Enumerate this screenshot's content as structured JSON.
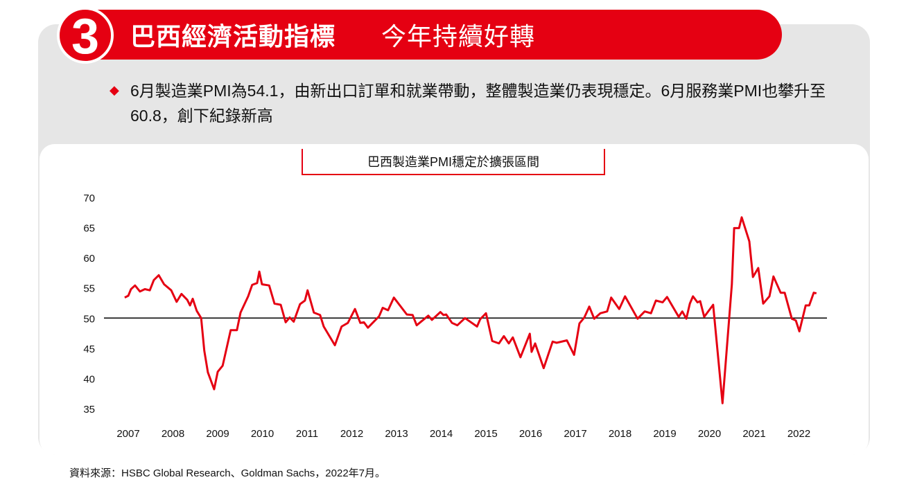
{
  "header": {
    "number": "3",
    "title_bold": "巴西經濟活動指標",
    "title_light": "今年持續好轉"
  },
  "description": "6月製造業PMI為54.1，由新出口訂單和就業帶動，整體製造業仍表現穩定。6月服務業PMI也攀升至60.8，創下紀錄新高",
  "source": "資料來源：HSBC Global Research、Goldman Sachs，2022年7月。",
  "colors": {
    "accent": "#e50012",
    "panel": "#e6e6e6",
    "line": "#e50012",
    "reference": "#000000"
  },
  "chart_data": {
    "type": "line",
    "title": "巴西製造業PMI穩定於擴張區間",
    "xlabel": "",
    "ylabel": "",
    "ylim": [
      35,
      70
    ],
    "xlim": [
      2007,
      2022.5
    ],
    "yticks": [
      "70",
      "65",
      "60",
      "55",
      "50",
      "45",
      "40",
      "35"
    ],
    "xticks": [
      "2007",
      "2008",
      "2009",
      "2010",
      "2011",
      "2012",
      "2013",
      "2014",
      "2015",
      "2016",
      "2017",
      "2018",
      "2019",
      "2020",
      "2021",
      "2022"
    ],
    "reference_line": 50,
    "grid": false,
    "x": [
      2007.03,
      2007.11,
      2007.17,
      2007.26,
      2007.37,
      2007.48,
      2007.59,
      2007.68,
      2007.79,
      2007.91,
      2008.07,
      2008.19,
      2008.3,
      2008.43,
      2008.49,
      2008.55,
      2008.64,
      2008.74,
      2008.81,
      2008.89,
      2009.03,
      2009.11,
      2009.22,
      2009.4,
      2009.54,
      2009.62,
      2009.79,
      2009.88,
      2009.99,
      2010.04,
      2010.1,
      2010.26,
      2010.38,
      2010.52,
      2010.63,
      2010.72,
      2010.81,
      2010.95,
      2011.06,
      2011.12,
      2011.26,
      2011.4,
      2011.48,
      2011.73,
      2011.88,
      2012.02,
      2012.18,
      2012.3,
      2012.38,
      2012.47,
      2012.72,
      2012.8,
      2012.92,
      2013.05,
      2013.34,
      2013.47,
      2013.56,
      2013.82,
      2013.9,
      2014.09,
      2014.16,
      2014.22,
      2014.35,
      2014.47,
      2014.64,
      2014.91,
      2014.98,
      2015.11,
      2015.25,
      2015.4,
      2015.51,
      2015.62,
      2015.71,
      2015.88,
      2016.09,
      2016.13,
      2016.21,
      2016.4,
      2016.6,
      2016.69,
      2016.92,
      2017.08,
      2017.2,
      2017.31,
      2017.42,
      2017.53,
      2017.67,
      2017.82,
      2017.91,
      2018.09,
      2018.22,
      2018.5,
      2018.66,
      2018.8,
      2018.91,
      2019.06,
      2019.16,
      2019.42,
      2019.5,
      2019.59,
      2019.67,
      2019.74,
      2019.84,
      2019.9,
      2019.99,
      2020.19,
      2020.4,
      2020.61,
      2020.66,
      2020.77,
      2020.83,
      2021.0,
      2021.08,
      2021.2,
      2021.31,
      2021.45,
      2021.54,
      2021.7,
      2021.79,
      2021.95,
      2022.04,
      2022.12,
      2022.26,
      2022.34,
      2022.44,
      2022.5
    ],
    "values": [
      53.4,
      53.7,
      54.8,
      55.4,
      54.4,
      54.8,
      54.6,
      56.3,
      57.1,
      55.6,
      54.6,
      52.7,
      54.0,
      53.0,
      52.1,
      53.2,
      51.2,
      50.0,
      44.6,
      41.0,
      38.2,
      41.1,
      42.1,
      48.0,
      48.0,
      50.9,
      53.6,
      55.5,
      55.8,
      57.7,
      55.6,
      55.4,
      52.4,
      52.2,
      49.3,
      50.1,
      49.4,
      52.3,
      52.9,
      54.6,
      50.9,
      50.5,
      48.6,
      45.5,
      48.6,
      49.2,
      51.5,
      49.2,
      49.3,
      48.4,
      50.3,
      51.7,
      51.3,
      53.4,
      50.6,
      50.5,
      48.8,
      50.4,
      49.7,
      51.0,
      50.5,
      50.6,
      49.2,
      48.8,
      50.0,
      48.6,
      49.8,
      50.8,
      46.2,
      45.8,
      47.0,
      45.8,
      46.8,
      43.5,
      47.4,
      44.4,
      45.8,
      41.7,
      46.1,
      45.9,
      46.3,
      43.9,
      49.1,
      50.1,
      51.9,
      49.9,
      50.8,
      51.1,
      53.4,
      51.5,
      53.6,
      49.9,
      51.1,
      50.8,
      52.9,
      52.6,
      53.5,
      50.2,
      51.1,
      49.9,
      52.4,
      53.6,
      52.6,
      52.8,
      50.2,
      52.2,
      35.9,
      55.6,
      64.9,
      64.9,
      66.7,
      62.7,
      56.8,
      58.3,
      52.4,
      53.6,
      56.9,
      54.2,
      54.2,
      49.9,
      49.6,
      47.8,
      52.1,
      52.1,
      54.2,
      54.1
    ]
  }
}
